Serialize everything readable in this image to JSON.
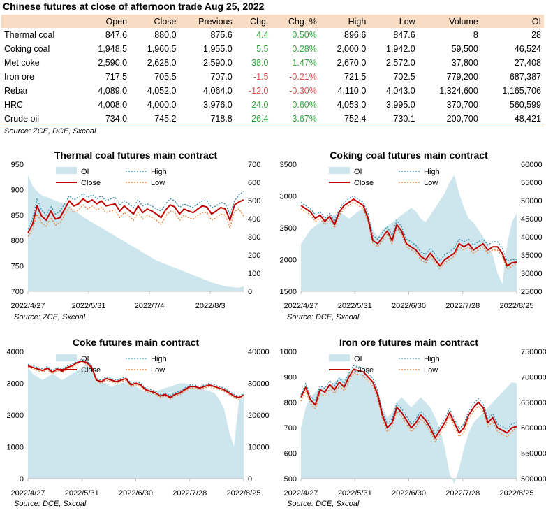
{
  "title": "Chinese futures at close of afternoon trade Aug 25, 2022",
  "table": {
    "columns": [
      "",
      "Open",
      "Close",
      "Previous",
      "Chg.",
      "Chg. %",
      "High",
      "Low",
      "Volume",
      "OI"
    ],
    "rows": [
      {
        "name": "Thermal coal",
        "open": "847.6",
        "close": "880.0",
        "previous": "875.6",
        "chg": "4.4",
        "chg_pct": "0.50%",
        "high": "896.6",
        "low": "847.6",
        "volume": "8",
        "oi": "28",
        "dir": "pos"
      },
      {
        "name": "Coking coal",
        "open": "1,948.5",
        "close": "1,960.5",
        "previous": "1,955.0",
        "chg": "5.5",
        "chg_pct": "0.28%",
        "high": "2,000.0",
        "low": "1,942.0",
        "volume": "59,500",
        "oi": "46,524",
        "dir": "pos"
      },
      {
        "name": "Met coke",
        "open": "2,590.0",
        "close": "2,628.0",
        "previous": "2,590.0",
        "chg": "38.0",
        "chg_pct": "1.47%",
        "high": "2,670.0",
        "low": "2,572.0",
        "volume": "37,800",
        "oi": "27,408",
        "dir": "pos"
      },
      {
        "name": "Iron ore",
        "open": "717.5",
        "close": "705.5",
        "previous": "707.0",
        "chg": "-1.5",
        "chg_pct": "-0.21%",
        "high": "721.5",
        "low": "702.5",
        "volume": "779,200",
        "oi": "687,387",
        "dir": "neg"
      },
      {
        "name": "Rebar",
        "open": "4,089.0",
        "close": "4,052.0",
        "previous": "4,064.0",
        "chg": "-12.0",
        "chg_pct": "-0.30%",
        "high": "4,110.0",
        "low": "4,043.0",
        "volume": "1,324,600",
        "oi": "1,165,706",
        "dir": "neg"
      },
      {
        "name": "HRC",
        "open": "4,008.0",
        "close": "4,000.0",
        "previous": "3,976.0",
        "chg": "24.0",
        "chg_pct": "0.60%",
        "high": "4,053.0",
        "low": "3,995.0",
        "volume": "370,700",
        "oi": "560,599",
        "dir": "pos"
      },
      {
        "name": "Crude oil",
        "open": "734.0",
        "close": "745.2",
        "previous": "718.8",
        "chg": "26.4",
        "chg_pct": "3.67%",
        "high": "752.4",
        "low": "730.1",
        "volume": "200,700",
        "oi": "48,421",
        "dir": "pos"
      }
    ],
    "source": "Source: ZCE, DCE, Sxcoal"
  },
  "colors": {
    "oi_fill": "#cde6ee",
    "close": "#c00000",
    "high": "#2e8ba8",
    "low": "#ed7d31",
    "positive": "#2eaa3a",
    "negative": "#e05050",
    "header_bg": "#f8dcc4"
  },
  "chart_data": [
    {
      "type": "line",
      "title": "Thermal coal futures main contract",
      "x_ticks": [
        "2022/4/27",
        "2022/5/31",
        "2022/7/4",
        "2022/8/3"
      ],
      "y_left": {
        "min": 700,
        "max": 950,
        "ticks": [
          700,
          750,
          800,
          850,
          900,
          950
        ]
      },
      "y_right": {
        "min": 0,
        "max": 700,
        "ticks": [
          0,
          100,
          200,
          300,
          400,
          500,
          600,
          700
        ]
      },
      "legend": [
        "OI",
        "High",
        "Close",
        "Low"
      ],
      "source": "Source: ZCE, Sxcoal",
      "series": {
        "close": [
          815,
          832,
          868,
          848,
          840,
          858,
          842,
          845,
          862,
          878,
          868,
          872,
          882,
          875,
          880,
          872,
          878,
          868,
          870,
          872,
          858,
          868,
          860,
          852,
          868,
          855,
          862,
          858,
          852,
          845,
          860,
          870,
          866,
          852,
          862,
          858,
          855,
          862,
          868,
          866,
          852,
          858,
          865,
          862,
          840,
          870,
          876,
          880
        ],
        "high": [
          822,
          842,
          882,
          860,
          850,
          868,
          852,
          858,
          872,
          888,
          880,
          885,
          892,
          885,
          890,
          882,
          888,
          878,
          882,
          885,
          870,
          878,
          872,
          865,
          880,
          868,
          872,
          868,
          862,
          858,
          872,
          882,
          878,
          865,
          872,
          868,
          865,
          872,
          878,
          878,
          865,
          868,
          875,
          872,
          852,
          878,
          890,
          896
        ],
        "low": [
          808,
          822,
          852,
          835,
          828,
          845,
          830,
          835,
          850,
          865,
          855,
          860,
          870,
          862,
          868,
          860,
          865,
          855,
          858,
          860,
          845,
          855,
          848,
          840,
          855,
          842,
          850,
          845,
          840,
          832,
          848,
          858,
          855,
          840,
          850,
          845,
          842,
          850,
          855,
          855,
          840,
          845,
          852,
          850,
          825,
          858,
          862,
          848
        ],
        "oi": [
          640,
          580,
          550,
          530,
          520,
          510,
          500,
          490,
          480,
          470,
          450,
          430,
          410,
          395,
          380,
          365,
          350,
          335,
          320,
          305,
          290,
          275,
          260,
          245,
          230,
          215,
          200,
          185,
          170,
          160,
          150,
          140,
          130,
          120,
          110,
          100,
          90,
          80,
          70,
          60,
          50,
          42,
          35,
          28,
          25,
          22,
          20,
          28
        ]
      }
    },
    {
      "type": "line",
      "title": "Coking coal futures main contract",
      "x_ticks": [
        "2022/4/27",
        "2022/5/31",
        "2022/6/30",
        "2022/7/28",
        "2022/8/25"
      ],
      "y_left": {
        "min": 1500,
        "max": 3500,
        "ticks": [
          1500,
          2000,
          2500,
          3000,
          3500
        ]
      },
      "y_right": {
        "min": 25000,
        "max": 60000,
        "ticks": [
          25000,
          30000,
          35000,
          40000,
          45000,
          50000,
          55000,
          60000
        ]
      },
      "legend": [
        "OI",
        "High",
        "Close",
        "Low"
      ],
      "source": "Source: DCE, Sxcoal",
      "series": {
        "close": [
          2850,
          2800,
          2750,
          2650,
          2700,
          2600,
          2680,
          2550,
          2750,
          2850,
          2900,
          2950,
          2900,
          2850,
          2650,
          2300,
          2250,
          2350,
          2450,
          2300,
          2550,
          2450,
          2250,
          2200,
          2150,
          2050,
          2000,
          2100,
          2000,
          1900,
          2000,
          2050,
          2100,
          2250,
          2200,
          2250,
          2150,
          2200,
          2250,
          2150,
          2200,
          2200,
          2100,
          1900,
          1950,
          1961
        ],
        "high": [
          2900,
          2850,
          2800,
          2700,
          2750,
          2650,
          2730,
          2600,
          2800,
          2900,
          2960,
          3000,
          2950,
          2900,
          2720,
          2380,
          2320,
          2420,
          2520,
          2380,
          2620,
          2520,
          2320,
          2280,
          2220,
          2120,
          2080,
          2180,
          2080,
          1980,
          2080,
          2120,
          2180,
          2320,
          2280,
          2320,
          2230,
          2280,
          2320,
          2230,
          2280,
          2280,
          2180,
          1980,
          2000,
          2000
        ],
        "low": [
          2800,
          2750,
          2700,
          2600,
          2650,
          2550,
          2630,
          2500,
          2700,
          2800,
          2850,
          2900,
          2850,
          2800,
          2600,
          2250,
          2200,
          2300,
          2400,
          2250,
          2500,
          2400,
          2200,
          2150,
          2100,
          2000,
          1950,
          2050,
          1950,
          1850,
          1950,
          2000,
          2050,
          2200,
          2150,
          2200,
          2100,
          2150,
          2200,
          2100,
          2150,
          2150,
          2050,
          1850,
          1900,
          1942
        ],
        "oi": [
          38000,
          40000,
          42000,
          43000,
          44000,
          45000,
          46000,
          46000,
          47000,
          46000,
          45000,
          46000,
          47000,
          48000,
          46000,
          42000,
          40000,
          42000,
          43000,
          44000,
          45000,
          46000,
          47000,
          48000,
          47000,
          45000,
          44000,
          46000,
          48000,
          50000,
          52000,
          55000,
          57000,
          52000,
          48000,
          45000,
          44000,
          42000,
          40000,
          38000,
          35000,
          30000,
          27000,
          38000,
          44000,
          46524
        ]
      }
    },
    {
      "type": "line",
      "title": "Coke futures main contract",
      "x_ticks": [
        "2022/4/27",
        "2022/5/31",
        "2022/6/30",
        "2022/7/28",
        "2022/8/25"
      ],
      "y_left": {
        "min": 0,
        "max": 4000,
        "ticks": [
          0,
          1000,
          2000,
          3000,
          4000
        ]
      },
      "y_right": {
        "min": 0,
        "max": 40000,
        "ticks": [
          0,
          10000,
          20000,
          30000,
          40000
        ]
      },
      "legend": [
        "OI",
        "High",
        "Close",
        "Low"
      ],
      "source": "Source: DCE, Sxcoal",
      "series": {
        "close": [
          3550,
          3500,
          3450,
          3400,
          3480,
          3350,
          3450,
          3380,
          3500,
          3550,
          3650,
          3700,
          3650,
          3500,
          3100,
          3050,
          3150,
          3100,
          3050,
          3100,
          3150,
          2950,
          3000,
          2950,
          2800,
          2750,
          2700,
          2600,
          2650,
          2550,
          2650,
          2700,
          2800,
          2900,
          2900,
          2850,
          2900,
          2950,
          2900,
          2850,
          2800,
          2700,
          2600,
          2550,
          2628
        ],
        "high": [
          3600,
          3550,
          3500,
          3450,
          3530,
          3400,
          3500,
          3430,
          3550,
          3600,
          3700,
          3750,
          3700,
          3550,
          3150,
          3100,
          3200,
          3150,
          3100,
          3150,
          3200,
          3000,
          3050,
          3000,
          2850,
          2800,
          2750,
          2650,
          2700,
          2600,
          2700,
          2750,
          2850,
          2950,
          2950,
          2900,
          2950,
          3000,
          2950,
          2900,
          2850,
          2750,
          2650,
          2600,
          2670
        ],
        "low": [
          3500,
          3450,
          3400,
          3350,
          3430,
          3300,
          3400,
          3330,
          3450,
          3500,
          3600,
          3650,
          3600,
          3450,
          3050,
          3000,
          3100,
          3050,
          3000,
          3050,
          3100,
          2900,
          2950,
          2900,
          2750,
          2700,
          2650,
          2550,
          2600,
          2500,
          2600,
          2650,
          2750,
          2850,
          2850,
          2800,
          2850,
          2900,
          2850,
          2800,
          2750,
          2650,
          2550,
          2500,
          2572
        ],
        "oi": [
          35000,
          33000,
          32000,
          31000,
          32000,
          33000,
          32000,
          31000,
          32000,
          33000,
          34000,
          35000,
          36000,
          34000,
          31000,
          30000,
          30000,
          29000,
          29500,
          30000,
          30500,
          30000,
          29000,
          28000,
          27500,
          27000,
          27500,
          28000,
          28500,
          29000,
          29500,
          30000,
          30000,
          29500,
          29000,
          28500,
          28000,
          27500,
          27000,
          25000,
          22000,
          15000,
          10000,
          24000,
          27408
        ]
      }
    },
    {
      "type": "line",
      "title": "Iron ore futures main contract",
      "x_ticks": [
        "2022/4/27",
        "2022/5/31",
        "2022/6/30",
        "2022/7/28",
        "2022/8/25"
      ],
      "y_left": {
        "min": 500,
        "max": 1000,
        "ticks": [
          500,
          600,
          700,
          800,
          900,
          1000
        ]
      },
      "y_right": {
        "min": 500000,
        "max": 750000,
        "ticks": [
          500000,
          550000,
          600000,
          650000,
          700000,
          750000
        ]
      },
      "legend": [
        "OI",
        "High",
        "Close",
        "Low"
      ],
      "source": "Source: DCE, Sxcoal",
      "series": {
        "close": [
          820,
          860,
          810,
          790,
          850,
          840,
          870,
          850,
          880,
          860,
          900,
          930,
          925,
          920,
          900,
          880,
          830,
          750,
          700,
          720,
          780,
          760,
          730,
          700,
          720,
          750,
          730,
          700,
          660,
          690,
          720,
          760,
          720,
          680,
          700,
          750,
          780,
          800,
          780,
          720,
          740,
          700,
          690,
          680,
          700,
          705
        ],
        "high": [
          830,
          875,
          825,
          805,
          865,
          855,
          885,
          865,
          895,
          875,
          915,
          945,
          940,
          935,
          915,
          895,
          845,
          765,
          715,
          735,
          795,
          775,
          745,
          715,
          735,
          765,
          745,
          715,
          675,
          705,
          735,
          775,
          735,
          695,
          715,
          765,
          795,
          815,
          795,
          735,
          755,
          715,
          705,
          695,
          715,
          721
        ],
        "low": [
          805,
          845,
          795,
          775,
          835,
          825,
          855,
          835,
          865,
          845,
          885,
          915,
          910,
          905,
          885,
          865,
          815,
          735,
          685,
          705,
          765,
          745,
          715,
          685,
          705,
          735,
          715,
          685,
          645,
          675,
          705,
          745,
          705,
          665,
          685,
          735,
          765,
          785,
          765,
          705,
          725,
          685,
          675,
          665,
          685,
          702
        ],
        "oi": [
          600000,
          640000,
          660000,
          670000,
          680000,
          675000,
          680000,
          690000,
          700000,
          695000,
          710000,
          715000,
          712000,
          708000,
          700000,
          690000,
          670000,
          640000,
          620000,
          630000,
          650000,
          660000,
          650000,
          640000,
          650000,
          660000,
          650000,
          640000,
          620000,
          600000,
          560000,
          510000,
          490000,
          520000,
          560000,
          590000,
          610000,
          620000,
          630000,
          640000,
          650000,
          660000,
          670000,
          680000,
          690000,
          687387
        ]
      }
    }
  ]
}
